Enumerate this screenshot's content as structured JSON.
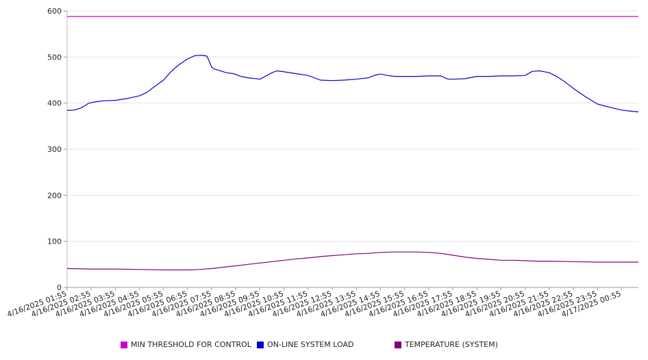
{
  "chart_data": {
    "type": "line",
    "title": "",
    "xlabel": "",
    "ylabel": "",
    "ylim": [
      0,
      600
    ],
    "y_ticks": [
      "0",
      "100",
      "200",
      "300",
      "400",
      "500",
      "600"
    ],
    "grid": "horizontal",
    "legend_position": "bottom",
    "categories": [
      "4/16/2025 01:55",
      "4/16/2025 02:55",
      "4/16/2025 03:55",
      "4/16/2025 04:55",
      "4/16/2025 05:55",
      "4/16/2025 06:55",
      "4/16/2025 07:55",
      "4/16/2025 08:55",
      "4/16/2025 09:55",
      "4/16/2025 10:55",
      "4/16/2025 11:55",
      "4/16/2025 12:55",
      "4/16/2025 13:55",
      "4/16/2025 14:55",
      "4/16/2025 15:55",
      "4/16/2025 16:55",
      "4/16/2025 17:55",
      "4/16/2025 18:55",
      "4/16/2025 19:55",
      "4/16/2025 20:55",
      "4/16/2025 21:55",
      "4/16/2025 22:55",
      "4/16/2025 23:55",
      "4/17/2025 00:55"
    ],
    "series": [
      {
        "name": "MIN THRESHOLD FOR CONTROL",
        "color": "#cc00cc",
        "x": [
          0,
          23.7
        ],
        "values": [
          588,
          588
        ]
      },
      {
        "name": "ON-LINE SYSTEM LOAD",
        "color": "#0000cc",
        "x": [
          0,
          0.3,
          0.6,
          0.9,
          1.2,
          1.5,
          2,
          2.5,
          3,
          3.3,
          3.6,
          4,
          4.3,
          4.6,
          5,
          5.3,
          5.6,
          5.8,
          6,
          6.1,
          6.3,
          6.6,
          6.9,
          7.2,
          7.5,
          8,
          8.5,
          8.7,
          9,
          9.5,
          10,
          10.5,
          11,
          11.5,
          12,
          12.5,
          12.8,
          13,
          13.3,
          13.6,
          14,
          14.5,
          15,
          15.5,
          15.8,
          16,
          16.5,
          17,
          17.5,
          18,
          18.5,
          19,
          19.3,
          19.6,
          20,
          20.3,
          20.6,
          21,
          21.5,
          22,
          22.5,
          23,
          23.3,
          23.7
        ],
        "values": [
          384,
          385,
          390,
          400,
          403,
          405,
          406,
          410,
          416,
          423,
          435,
          450,
          468,
          482,
          496,
          503,
          504,
          502,
          478,
          474,
          471,
          466,
          464,
          458,
          455,
          452,
          466,
          470,
          468,
          464,
          460,
          450,
          449,
          450,
          452,
          455,
          461,
          463,
          460,
          458,
          458,
          458,
          459,
          459,
          452,
          452,
          453,
          458,
          458,
          459,
          459,
          460,
          469,
          470,
          466,
          458,
          448,
          432,
          414,
          398,
          391,
          385,
          383,
          381
        ]
      },
      {
        "name": "TEMPERATURE (SYSTEM)",
        "color": "#800080",
        "x": [
          0,
          1,
          2,
          3,
          4,
          5,
          5.5,
          6,
          6.5,
          7,
          7.5,
          8,
          8.5,
          9,
          9.5,
          10,
          10.5,
          11,
          11.5,
          12,
          12.5,
          13,
          13.5,
          14,
          14.5,
          15,
          15.5,
          16,
          16.5,
          17,
          17.5,
          18,
          18.5,
          19,
          19.5,
          20,
          21,
          22,
          23,
          23.7
        ],
        "values": [
          41,
          40,
          40,
          39,
          38,
          38,
          39,
          41,
          44,
          47,
          50,
          53,
          56,
          59,
          62,
          64,
          67,
          69,
          71,
          73,
          74,
          76,
          77,
          77,
          77,
          76,
          74,
          70,
          66,
          63,
          61,
          59,
          59,
          58,
          57,
          57,
          56,
          55,
          55,
          55
        ]
      }
    ]
  }
}
